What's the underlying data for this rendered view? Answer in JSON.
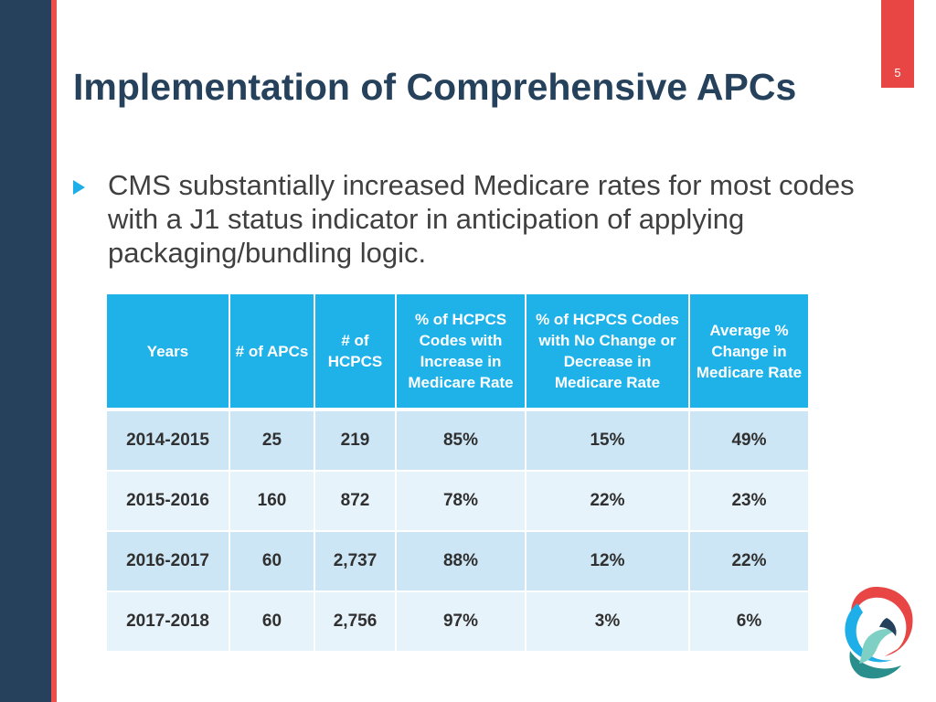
{
  "slide": {
    "page_number": "5",
    "title": "Implementation of Comprehensive APCs",
    "bullet": "CMS substantially increased Medicare rates for most codes with a J1 status indicator in anticipation of applying packaging/bundling logic."
  },
  "table": {
    "headers": [
      "Years",
      "# of APCs",
      "# of HCPCS",
      "% of HCPCS Codes with Increase in Medicare Rate",
      "% of HCPCS Codes with No Change or Decrease in Medicare Rate",
      "Average % Change in Medicare Rate"
    ],
    "rows": [
      [
        "2014-2015",
        "25",
        "219",
        "85%",
        "15%",
        "49%"
      ],
      [
        "2015-2016",
        "160",
        "872",
        "78%",
        "22%",
        "23%"
      ],
      [
        "2016-2017",
        "60",
        "2,737",
        "88%",
        "12%",
        "22%"
      ],
      [
        "2017-2018",
        "60",
        "2,756",
        "97%",
        "3%",
        "6%"
      ]
    ]
  },
  "colors": {
    "sidebar": "#25415c",
    "accent": "#ef4f4c",
    "header_blue": "#1fb2e9",
    "row_dark": "#cce6f5",
    "row_light": "#e7f3fa"
  },
  "icons": {
    "bullet": "triangle-right-icon",
    "logo": "brand-swirl-logo"
  }
}
